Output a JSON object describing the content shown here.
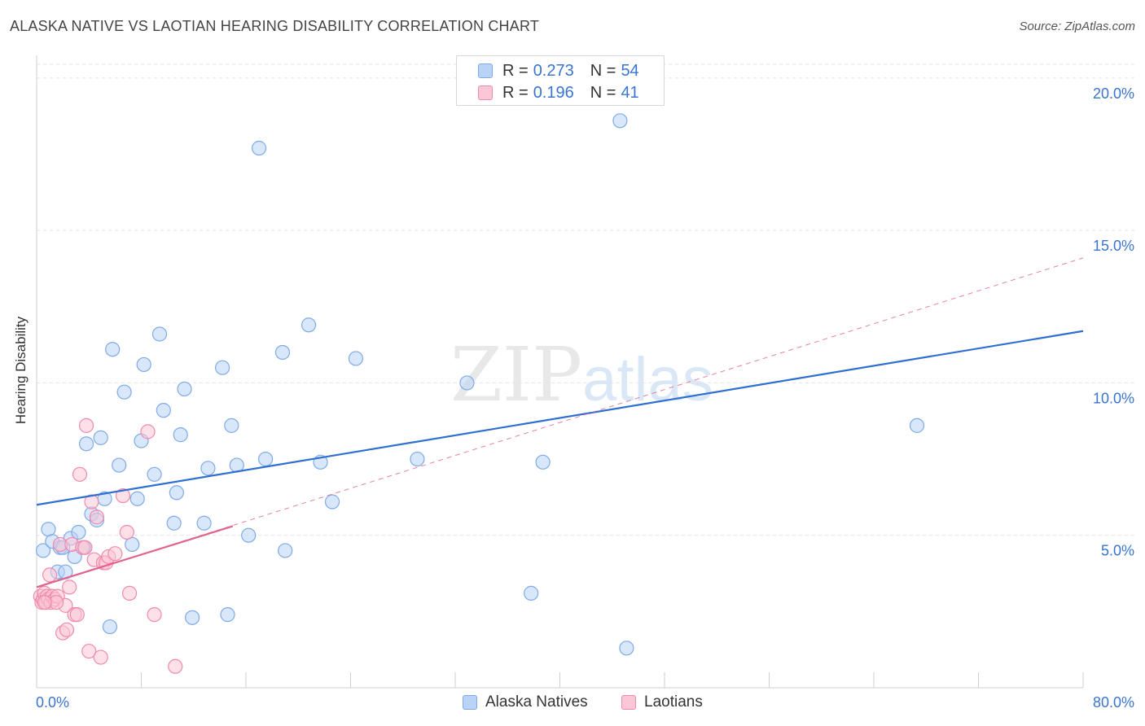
{
  "title": "ALASKA NATIVE VS LAOTIAN HEARING DISABILITY CORRELATION CHART",
  "source": "Source: ZipAtlas.com",
  "colors": {
    "blue_fill": "#b9d3f6",
    "blue_stroke": "#7faae8",
    "blue_line": "#2f6fd1",
    "pink_fill": "#fbc7d6",
    "pink_stroke": "#f08aab",
    "pink_line": "#e0628f",
    "axis_label": "#3a74d1",
    "grid": "#e4e4e4"
  },
  "legend_top": {
    "rows": [
      {
        "r_label": "R =",
        "r_value": "0.273",
        "n_label": "N =",
        "n_value": "54"
      },
      {
        "r_label": "R =",
        "r_value": "0.196",
        "n_label": "N =",
        "n_value": "41"
      }
    ]
  },
  "chart_data": {
    "type": "scatter",
    "title": "ALASKA NATIVE VS LAOTIAN HEARING DISABILITY CORRELATION CHART",
    "xlabel": "",
    "ylabel": "Hearing Disability",
    "xlim": [
      0,
      80
    ],
    "ylim": [
      0,
      20
    ],
    "x_tick_labels": [
      "0.0%",
      "80.0%"
    ],
    "y_tick_labels": [
      "5.0%",
      "10.0%",
      "15.0%",
      "20.0%"
    ],
    "y_ticks": [
      5,
      10,
      15,
      20
    ],
    "grid": true,
    "legend": "bottom",
    "watermark": {
      "part1": "ZIP",
      "part2": "atlas"
    },
    "series": [
      {
        "name": "Alaska Natives",
        "color": "#b9d3f6",
        "R": 0.273,
        "N": 54,
        "trend": {
          "x": [
            0,
            80
          ],
          "y": [
            6.0,
            11.7
          ],
          "style": "solid"
        },
        "points": [
          [
            0.5,
            4.5
          ],
          [
            0.9,
            5.2
          ],
          [
            1.2,
            4.8
          ],
          [
            1.6,
            3.8
          ],
          [
            1.8,
            4.6
          ],
          [
            2.2,
            3.8
          ],
          [
            2.6,
            4.9
          ],
          [
            2.9,
            4.3
          ],
          [
            3.2,
            5.1
          ],
          [
            3.6,
            4.6
          ],
          [
            3.8,
            8.0
          ],
          [
            4.2,
            5.7
          ],
          [
            4.6,
            5.5
          ],
          [
            4.9,
            8.2
          ],
          [
            5.2,
            6.2
          ],
          [
            5.8,
            11.1
          ],
          [
            6.3,
            7.3
          ],
          [
            6.7,
            9.7
          ],
          [
            7.3,
            4.7
          ],
          [
            7.7,
            6.2
          ],
          [
            8.0,
            8.1
          ],
          [
            8.2,
            10.6
          ],
          [
            9.0,
            7.0
          ],
          [
            9.4,
            11.6
          ],
          [
            9.7,
            9.1
          ],
          [
            10.5,
            5.4
          ],
          [
            10.7,
            6.4
          ],
          [
            11.0,
            8.3
          ],
          [
            11.3,
            9.8
          ],
          [
            11.9,
            2.3
          ],
          [
            12.8,
            5.4
          ],
          [
            13.1,
            7.2
          ],
          [
            14.2,
            10.5
          ],
          [
            14.6,
            2.4
          ],
          [
            14.9,
            8.6
          ],
          [
            15.3,
            7.3
          ],
          [
            16.2,
            5.0
          ],
          [
            17.0,
            17.7
          ],
          [
            17.5,
            7.5
          ],
          [
            18.8,
            11.0
          ],
          [
            19.0,
            4.5
          ],
          [
            20.8,
            11.9
          ],
          [
            21.7,
            7.4
          ],
          [
            22.6,
            6.1
          ],
          [
            24.4,
            10.8
          ],
          [
            29.1,
            7.5
          ],
          [
            32.9,
            10.0
          ],
          [
            37.8,
            3.1
          ],
          [
            38.7,
            7.4
          ],
          [
            44.6,
            18.6
          ],
          [
            45.1,
            1.3
          ],
          [
            67.3,
            8.6
          ],
          [
            5.6,
            2.0
          ],
          [
            2.0,
            4.6
          ]
        ]
      },
      {
        "name": "Laotians",
        "color": "#fbc7d6",
        "R": 0.196,
        "N": 41,
        "trend_solid": {
          "x": [
            0,
            15
          ],
          "y": [
            3.3,
            5.3
          ],
          "style": "solid"
        },
        "trend": {
          "x": [
            0,
            80
          ],
          "y": [
            3.3,
            14.1
          ],
          "style": "dashed"
        },
        "points": [
          [
            0.3,
            3.0
          ],
          [
            0.4,
            2.8
          ],
          [
            0.5,
            2.9
          ],
          [
            0.6,
            3.1
          ],
          [
            0.7,
            2.8
          ],
          [
            0.8,
            3.0
          ],
          [
            0.9,
            2.9
          ],
          [
            1.0,
            3.7
          ],
          [
            1.1,
            2.8
          ],
          [
            1.2,
            3.0
          ],
          [
            1.4,
            2.9
          ],
          [
            1.6,
            3.0
          ],
          [
            1.8,
            4.7
          ],
          [
            2.0,
            1.8
          ],
          [
            2.2,
            2.7
          ],
          [
            2.3,
            1.9
          ],
          [
            2.5,
            3.3
          ],
          [
            2.7,
            4.7
          ],
          [
            2.9,
            2.4
          ],
          [
            3.1,
            2.4
          ],
          [
            3.3,
            7.0
          ],
          [
            3.5,
            4.6
          ],
          [
            3.7,
            4.6
          ],
          [
            3.8,
            8.6
          ],
          [
            4.0,
            1.2
          ],
          [
            4.2,
            6.1
          ],
          [
            4.4,
            4.2
          ],
          [
            4.6,
            5.6
          ],
          [
            4.9,
            1.0
          ],
          [
            5.1,
            4.1
          ],
          [
            5.3,
            4.1
          ],
          [
            5.5,
            4.3
          ],
          [
            6.0,
            4.4
          ],
          [
            6.6,
            6.3
          ],
          [
            6.9,
            5.1
          ],
          [
            7.1,
            3.1
          ],
          [
            8.5,
            8.4
          ],
          [
            9.0,
            2.4
          ],
          [
            10.6,
            0.7
          ],
          [
            1.5,
            2.8
          ],
          [
            0.6,
            2.8
          ]
        ]
      }
    ]
  }
}
